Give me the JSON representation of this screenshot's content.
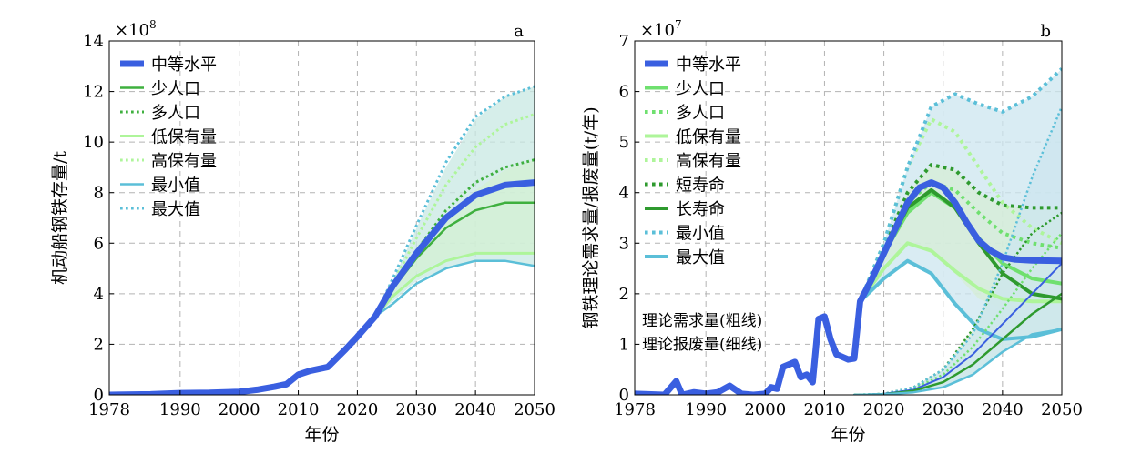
{
  "chart_data": [
    {
      "panel": "a",
      "type": "line",
      "xlabel": "年份",
      "ylabel": "机动船钢铁存量/t",
      "multiplier": "×10^8",
      "xlim": [
        1978,
        2050
      ],
      "ylim": [
        0,
        14
      ],
      "xticks": [
        1978,
        1990,
        2000,
        2010,
        2020,
        2030,
        2040,
        2050
      ],
      "yticks": [
        0,
        2,
        4,
        6,
        8,
        10,
        12,
        14
      ],
      "grid": true,
      "legend_position": "top-left",
      "bands": [
        {
          "color": "#c8e8e3",
          "x": [
            2023,
            2026,
            2030,
            2035,
            2040,
            2045,
            2050
          ],
          "upper": [
            3.1,
            4.5,
            6.6,
            9.0,
            10.9,
            11.8,
            12.2
          ],
          "lower": [
            3.1,
            3.7,
            4.5,
            5.0,
            5.3,
            5.3,
            5.1
          ]
        },
        {
          "color": "#d3f0d3",
          "x": [
            2023,
            2026,
            2030,
            2035,
            2040,
            2045,
            2050
          ],
          "upper": [
            3.1,
            4.1,
            5.3,
            6.8,
            8.1,
            8.9,
            9.3
          ],
          "lower": [
            3.1,
            4.0,
            4.8,
            5.4,
            5.6,
            5.6,
            5.6
          ]
        }
      ],
      "series": [
        {
          "name": "中等水平",
          "color": "#3a5fe0",
          "width": 7,
          "dash": "solid",
          "x": [
            1978,
            1985,
            1990,
            1995,
            2000,
            2003,
            2006,
            2008,
            2010,
            2012,
            2015,
            2018,
            2020,
            2023,
            2026,
            2030,
            2035,
            2040,
            2045,
            2050
          ],
          "y": [
            0,
            0.02,
            0.07,
            0.08,
            0.12,
            0.2,
            0.32,
            0.42,
            0.8,
            0.95,
            1.1,
            1.8,
            2.3,
            3.1,
            4.3,
            5.6,
            7.0,
            7.9,
            8.3,
            8.4
          ]
        },
        {
          "name": "少人口",
          "color": "#3fb03f",
          "width": 2.5,
          "dash": "solid",
          "x": [
            2023,
            2026,
            2030,
            2035,
            2040,
            2045,
            2050
          ],
          "y": [
            3.1,
            4.2,
            5.4,
            6.6,
            7.3,
            7.6,
            7.6
          ]
        },
        {
          "name": "多人口",
          "color": "#3fb03f",
          "width": 3,
          "dash": "dot",
          "x": [
            2023,
            2026,
            2030,
            2035,
            2040,
            2045,
            2050
          ],
          "y": [
            3.1,
            4.3,
            5.7,
            7.3,
            8.4,
            9.0,
            9.3
          ]
        },
        {
          "name": "低保有量",
          "color": "#aef59a",
          "width": 3,
          "dash": "solid",
          "x": [
            2023,
            2026,
            2030,
            2035,
            2040,
            2045,
            2050
          ],
          "y": [
            3.1,
            3.9,
            4.7,
            5.3,
            5.6,
            5.6,
            5.6
          ]
        },
        {
          "name": "高保有量",
          "color": "#aef59a",
          "width": 3,
          "dash": "dot",
          "x": [
            2023,
            2026,
            2030,
            2035,
            2040,
            2045,
            2050
          ],
          "y": [
            3.1,
            4.4,
            6.2,
            8.3,
            9.8,
            10.7,
            11.1
          ]
        },
        {
          "name": "最小值",
          "color": "#5bbfd8",
          "width": 2.5,
          "dash": "solid",
          "x": [
            2023,
            2026,
            2030,
            2035,
            2040,
            2045,
            2050
          ],
          "y": [
            3.1,
            3.6,
            4.4,
            5.0,
            5.3,
            5.3,
            5.1
          ]
        },
        {
          "name": "最大值",
          "color": "#5bbfd8",
          "width": 3,
          "dash": "dot",
          "x": [
            2023,
            2026,
            2030,
            2035,
            2040,
            2045,
            2050
          ],
          "y": [
            3.1,
            4.6,
            6.7,
            9.2,
            11.0,
            11.8,
            12.2
          ]
        }
      ]
    },
    {
      "panel": "b",
      "type": "line",
      "xlabel": "年份",
      "ylabel": "钢铁理论需求量/报废量(t/年)",
      "multiplier": "×10^7",
      "xlim": [
        1978,
        2050
      ],
      "ylim": [
        0,
        7
      ],
      "xticks": [
        1978,
        1990,
        2000,
        2010,
        2020,
        2030,
        2040,
        2050
      ],
      "yticks": [
        0,
        1,
        2,
        3,
        4,
        5,
        6,
        7
      ],
      "grid": true,
      "legend_position": "top-left",
      "annotations": [
        "理论需求量(粗线)",
        "理论报废量(细线)"
      ],
      "bands": [
        {
          "color": "#cce6ef",
          "x": [
            2016,
            2020,
            2024,
            2028,
            2032,
            2036,
            2040,
            2045,
            2050
          ],
          "upper": [
            1.85,
            3.0,
            4.5,
            5.7,
            5.95,
            5.75,
            5.6,
            5.9,
            6.45
          ],
          "lower": [
            1.85,
            2.3,
            2.6,
            2.4,
            1.8,
            1.3,
            1.1,
            1.15,
            1.3
          ]
        },
        {
          "color": "#d5eed5",
          "x": [
            2016,
            2020,
            2024,
            2028,
            2032,
            2036,
            2040,
            2045,
            2050
          ],
          "upper": [
            1.85,
            2.9,
            4.0,
            4.55,
            4.45,
            4.0,
            3.75,
            3.7,
            3.7
          ],
          "lower": [
            1.85,
            2.6,
            3.0,
            2.8,
            2.4,
            1.9,
            1.7,
            1.8,
            1.9
          ]
        },
        {
          "color": "#d5eed5",
          "x": [
            2025,
            2030,
            2035,
            2040,
            2045,
            2050
          ],
          "upper": [
            0.15,
            0.5,
            1.3,
            2.4,
            3.2,
            3.6
          ],
          "lower": [
            0.05,
            0.15,
            0.4,
            0.85,
            1.2,
            1.3
          ]
        },
        {
          "color": "#cce6ef",
          "x": [
            2025,
            2030,
            2035,
            2040,
            2045,
            2050
          ],
          "upper": [
            0.15,
            0.5,
            1.2,
            2.6,
            4.3,
            5.7
          ],
          "lower": [
            0.05,
            0.15,
            0.4,
            0.85,
            1.2,
            1.3
          ]
        }
      ],
      "series": [
        {
          "name": "中等水平",
          "color": "#3a5fe0",
          "width": 7,
          "dash": "solid",
          "x": [
            1978,
            1983,
            1985,
            1986,
            1988,
            1990,
            1992,
            1994,
            1996,
            1998,
            2000,
            2001,
            2002,
            2003,
            2005,
            2006,
            2007,
            2008,
            2009,
            2010,
            2011,
            2012,
            2013,
            2014,
            2015,
            2016,
            2018,
            2020,
            2022,
            2024,
            2026,
            2028,
            2030,
            2032,
            2034,
            2036,
            2038,
            2040,
            2042,
            2045,
            2050
          ],
          "y": [
            0.02,
            0,
            0.27,
            0,
            0.05,
            0.02,
            0.05,
            0.18,
            0.02,
            0,
            0.02,
            0.15,
            0.12,
            0.55,
            0.65,
            0.35,
            0.4,
            0.25,
            1.5,
            1.55,
            1.1,
            0.8,
            0.75,
            0.7,
            0.72,
            1.85,
            2.3,
            2.8,
            3.3,
            3.8,
            4.1,
            4.2,
            4.1,
            3.8,
            3.4,
            3.05,
            2.85,
            2.72,
            2.68,
            2.66,
            2.65
          ]
        },
        {
          "name": "少人口",
          "color": "#6fe06f",
          "width": 4,
          "dash": "solid",
          "x": [
            2016,
            2020,
            2024,
            2028,
            2032,
            2036,
            2040,
            2045,
            2050
          ],
          "y": [
            1.85,
            2.8,
            3.6,
            4.0,
            3.7,
            3.1,
            2.6,
            2.3,
            2.2
          ]
        },
        {
          "name": "多人口",
          "color": "#6fe06f",
          "width": 4,
          "dash": "dot",
          "x": [
            2016,
            2020,
            2024,
            2028,
            2032,
            2036,
            2040,
            2045,
            2050
          ],
          "y": [
            1.85,
            2.9,
            3.8,
            4.2,
            4.05,
            3.6,
            3.2,
            3.0,
            2.9
          ]
        },
        {
          "name": "低保有量",
          "color": "#aef59a",
          "width": 4,
          "dash": "solid",
          "x": [
            2016,
            2020,
            2024,
            2028,
            2032,
            2036,
            2040,
            2045,
            2050
          ],
          "y": [
            1.85,
            2.5,
            3.0,
            2.85,
            2.45,
            2.1,
            1.9,
            1.85,
            1.85
          ]
        },
        {
          "name": "高保有量",
          "color": "#aef59a",
          "width": 4,
          "dash": "dot",
          "x": [
            2016,
            2020,
            2024,
            2028,
            2032,
            2036,
            2040,
            2045,
            2050
          ],
          "y": [
            1.85,
            3.0,
            4.5,
            5.45,
            5.2,
            4.5,
            3.8,
            3.3,
            3.0
          ]
        },
        {
          "name": "短寿命",
          "color": "#2e9a2e",
          "width": 4,
          "dash": "dot",
          "x": [
            2016,
            2020,
            2024,
            2028,
            2032,
            2036,
            2040,
            2045,
            2050
          ],
          "y": [
            1.85,
            2.9,
            4.0,
            4.55,
            4.45,
            4.0,
            3.75,
            3.7,
            3.7
          ]
        },
        {
          "name": "长寿命",
          "color": "#2e9a2e",
          "width": 4,
          "dash": "solid",
          "x": [
            2016,
            2020,
            2024,
            2028,
            2032,
            2036,
            2040,
            2045,
            2050
          ],
          "y": [
            1.85,
            2.8,
            3.7,
            4.05,
            3.7,
            3.0,
            2.4,
            2.0,
            1.9
          ]
        },
        {
          "name": "最小值",
          "color": "#5bbfd8",
          "width": 4,
          "dash": "dot",
          "x": [
            2016,
            2020,
            2024,
            2028,
            2032,
            2036,
            2040,
            2045,
            2050
          ],
          "y": [
            1.85,
            3.0,
            4.5,
            5.7,
            5.95,
            5.75,
            5.6,
            5.9,
            6.45
          ]
        },
        {
          "name": "最大值",
          "color": "#5bbfd8",
          "width": 4,
          "dash": "solid",
          "x": [
            2016,
            2020,
            2024,
            2028,
            2032,
            2036,
            2040,
            2045,
            2050
          ],
          "y": [
            1.85,
            2.3,
            2.65,
            2.4,
            1.8,
            1.3,
            1.1,
            1.15,
            1.3
          ]
        },
        {
          "color": "#2e9a2e",
          "width": 2.5,
          "dash": "dot",
          "x": [
            2015,
            2020,
            2025,
            2030,
            2035,
            2040,
            2045,
            2050
          ],
          "y": [
            0,
            0.02,
            0.15,
            0.5,
            1.3,
            2.4,
            3.2,
            3.6
          ]
        },
        {
          "color": "#6fe06f",
          "width": 2.5,
          "dash": "dot",
          "x": [
            2015,
            2020,
            2025,
            2030,
            2035,
            2040,
            2045,
            2050
          ],
          "y": [
            0,
            0.02,
            0.12,
            0.4,
            0.95,
            1.7,
            2.5,
            3.2
          ]
        },
        {
          "color": "#5bbfd8",
          "width": 2.5,
          "dash": "dot",
          "x": [
            2015,
            2020,
            2025,
            2030,
            2035,
            2040,
            2045,
            2050
          ],
          "y": [
            0,
            0.02,
            0.15,
            0.5,
            1.2,
            2.6,
            4.3,
            5.7
          ]
        },
        {
          "color": "#3a5fe0",
          "width": 2,
          "dash": "solid",
          "x": [
            2015,
            2020,
            2025,
            2030,
            2035,
            2040,
            2045,
            2050
          ],
          "y": [
            0,
            0.02,
            0.1,
            0.35,
            0.8,
            1.4,
            2.0,
            2.6
          ]
        },
        {
          "color": "#2e9a2e",
          "width": 2.5,
          "dash": "solid",
          "x": [
            2015,
            2020,
            2025,
            2030,
            2035,
            2040,
            2045,
            2050
          ],
          "y": [
            0,
            0.01,
            0.08,
            0.25,
            0.6,
            1.1,
            1.6,
            2.0
          ]
        },
        {
          "color": "#5bbfd8",
          "width": 2.5,
          "dash": "solid",
          "x": [
            2015,
            2020,
            2025,
            2030,
            2035,
            2040,
            2045,
            2050
          ],
          "y": [
            0,
            0.01,
            0.05,
            0.15,
            0.4,
            0.85,
            1.2,
            1.3
          ]
        }
      ]
    }
  ]
}
